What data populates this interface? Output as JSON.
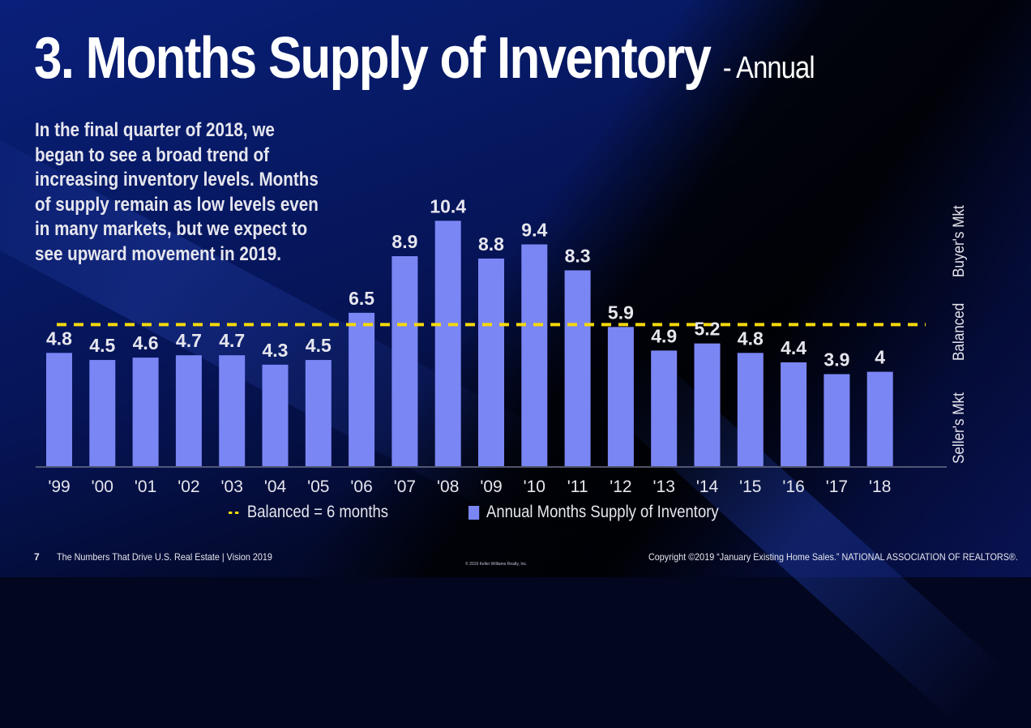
{
  "slide": {
    "title": "3. Months Supply of Inventory",
    "title_suffix": "- Annual",
    "description_lines": [
      "In the final quarter of 2018, we",
      "began to see a broad trend of",
      "increasing inventory levels. Months",
      "of supply remain as low levels even",
      "in many markets, but we expect to",
      "see upward movement in 2019."
    ],
    "market_labels": {
      "buyers": "Buyer's Mkt",
      "balanced": "Balanced",
      "sellers": "Seller's Mkt"
    },
    "footer": {
      "page_number": "7",
      "presentation": "The Numbers That Drive U.S. Real Estate | Vision 2019",
      "company_copyright": "© 2019 Keller Williams Realty, Inc.",
      "source": "Copyright ©2019 “January Existing Home Sales.” NATIONAL ASSOCIATION OF REALTORS®."
    },
    "colors": {
      "bar": "#7b86f5",
      "balanced_line": "#f5d90a",
      "text": "#e6e6ee"
    }
  },
  "chart_data": {
    "type": "bar",
    "title": "Months Supply of Inventory - Annual",
    "xlabel": "",
    "ylabel": "",
    "ylim": [
      0,
      10.4
    ],
    "grid": false,
    "categories": [
      "'99",
      "'00",
      "'01",
      "'02",
      "'03",
      "'04",
      "'05",
      "'06",
      "'07",
      "'08",
      "'09",
      "'10",
      "'11",
      "'12",
      "'13",
      "'14",
      "'15",
      "'16",
      "'17",
      "'18"
    ],
    "series": [
      {
        "name": "Annual Months Supply of Inventory",
        "values": [
          4.8,
          4.5,
          4.6,
          4.7,
          4.7,
          4.3,
          4.5,
          6.5,
          8.9,
          10.4,
          8.8,
          9.4,
          8.3,
          5.9,
          4.9,
          5.2,
          4.8,
          4.4,
          3.9,
          4
        ]
      }
    ],
    "data_labels": [
      "4.8",
      "4.5",
      "4.6",
      "4.7",
      "4.7",
      "4.3",
      "4.5",
      "6.5",
      "8.9",
      "10.4",
      "8.8",
      "9.4",
      "8.3",
      "5.9",
      "4.9",
      "5.2",
      "4.8",
      "4.4",
      "3.9",
      "4"
    ],
    "reference_line": {
      "name": "Balanced = 6 months",
      "value": 6,
      "style": "dashed"
    },
    "legend": {
      "position": "bottom",
      "entries": [
        "Balanced = 6 months",
        "Annual Months Supply of Inventory"
      ]
    }
  }
}
